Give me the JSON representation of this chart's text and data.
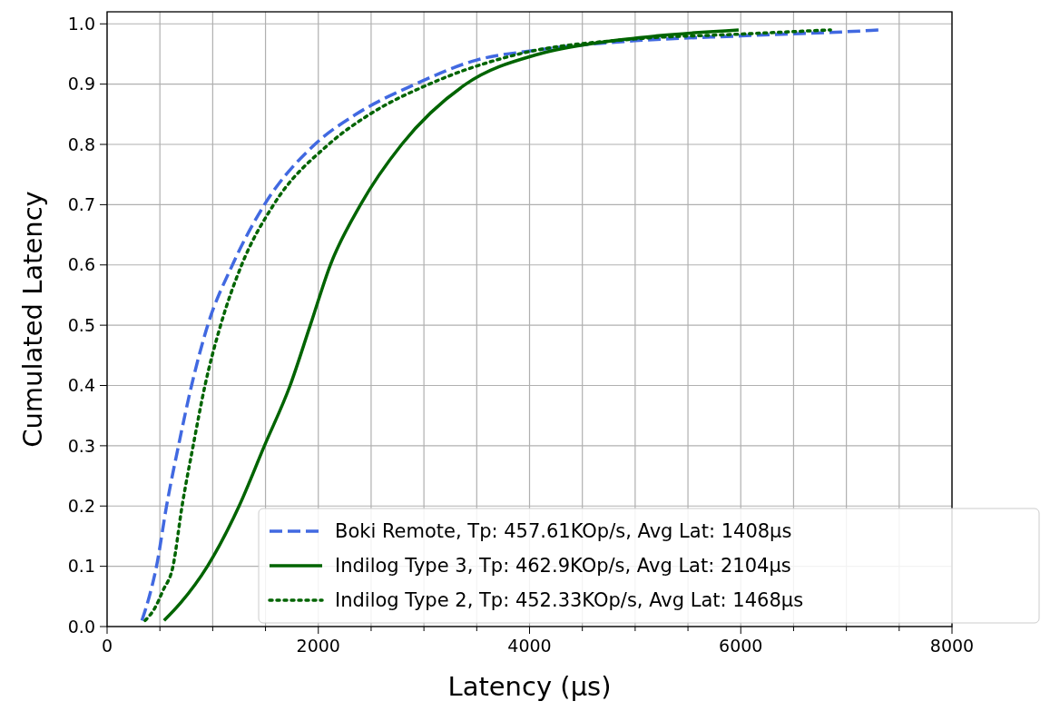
{
  "chart_data": {
    "type": "line",
    "xlabel": "Latency (µs)",
    "ylabel": "Cumulated Latency",
    "xlim": [
      0,
      8000
    ],
    "ylim": [
      0,
      1.02
    ],
    "xticks": [
      0,
      {
        "value": 500,
        "label": null
      },
      {
        "value": 1000,
        "label": null
      },
      {
        "value": 1500,
        "label": null
      },
      2000,
      {
        "value": 2500,
        "label": null
      },
      {
        "value": 3000,
        "label": null
      },
      {
        "value": 3500,
        "label": null
      },
      4000,
      {
        "value": 4500,
        "label": null
      },
      {
        "value": 5000,
        "label": null
      },
      {
        "value": 5500,
        "label": null
      },
      6000,
      {
        "value": 6500,
        "label": null
      },
      {
        "value": 7000,
        "label": null
      },
      {
        "value": 7500,
        "label": null
      },
      8000
    ],
    "yticks": [
      {
        "value": 0,
        "label": "0.0"
      },
      {
        "value": 0.1,
        "label": "0.1"
      },
      {
        "value": 0.2,
        "label": "0.2"
      },
      {
        "value": 0.3,
        "label": "0.3"
      },
      {
        "value": 0.4,
        "label": "0.4"
      },
      {
        "value": 0.5,
        "label": "0.5"
      },
      {
        "value": 0.6,
        "label": "0.6"
      },
      {
        "value": 0.7,
        "label": "0.7"
      },
      {
        "value": 0.8,
        "label": "0.8"
      },
      {
        "value": 0.9,
        "label": "0.9"
      },
      {
        "value": 1.0,
        "label": "1.0"
      }
    ],
    "grid": true,
    "legend": "bottom right",
    "series": [
      {
        "name": "Boki Remote, Tp: 457.61KOp/s, Avg Lat: 1408µs",
        "color": "#4169e1",
        "line_style": "dashed",
        "x": [
          330,
          400,
          468,
          563,
          676,
          800,
          953,
          1187,
          1490,
          1967,
          2357,
          2920,
          3500,
          4000,
          4500,
          5000,
          6000,
          7000,
          7330
        ],
        "values": [
          0.01,
          0.05,
          0.1,
          0.2,
          0.3,
          0.4,
          0.5,
          0.6,
          0.7,
          0.8,
          0.85,
          0.9,
          0.94,
          0.955,
          0.965,
          0.972,
          0.98,
          0.987,
          0.99
        ]
      },
      {
        "name": "Indilog Type 3, Tp: 462.9KOp/s, Avg Lat: 2104µs",
        "color": "#006400",
        "line_style": "solid",
        "x": [
          540,
          700,
          950,
          1250,
          1490,
          1733,
          1924,
          2114,
          2400,
          2790,
          3397,
          4090,
          4700,
          5200,
          5980
        ],
        "values": [
          0.01,
          0.04,
          0.1,
          0.2,
          0.3,
          0.4,
          0.5,
          0.6,
          0.7,
          0.8,
          0.9,
          0.95,
          0.97,
          0.98,
          0.99
        ]
      },
      {
        "name": "Indilog Type 2, Tp: 452.33KOp/s, Avg Lat: 1468µs",
        "color": "#006400",
        "line_style": "dotted",
        "x": [
          360,
          450,
          530,
          624,
          710,
          815,
          927,
          1075,
          1274,
          1577,
          2097,
          2487,
          3050,
          3900,
          5000,
          6000,
          6850
        ],
        "values": [
          0.01,
          0.03,
          0.06,
          0.1,
          0.2,
          0.3,
          0.4,
          0.5,
          0.6,
          0.7,
          0.8,
          0.85,
          0.9,
          0.95,
          0.975,
          0.983,
          0.99
        ]
      }
    ]
  }
}
